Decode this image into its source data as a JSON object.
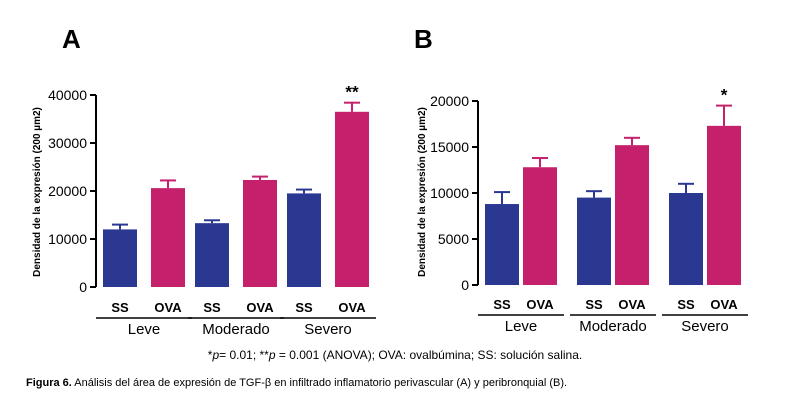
{
  "chart_data": [
    {
      "type": "bar",
      "panel": "A",
      "ylabel": "Densidad de la expresión  (200 µm2)",
      "ylim": [
        0,
        40000
      ],
      "yticks": [
        "0",
        "10000",
        "20000",
        "30000",
        "40000"
      ],
      "categories": [
        "SS",
        "OVA",
        "SS",
        "OVA",
        "SS",
        "OVA"
      ],
      "groups": [
        "Leve",
        "Moderado",
        "Severo"
      ],
      "values": [
        12000,
        20600,
        13300,
        22300,
        19500,
        36500
      ],
      "errors": [
        1000,
        1600,
        600,
        700,
        800,
        1900
      ],
      "colors": [
        "#2b3891",
        "#c4206c",
        "#2b3891",
        "#c4206c",
        "#2b3891",
        "#c4206c"
      ],
      "annotations": [
        "",
        "",
        "",
        "",
        "",
        "**"
      ]
    },
    {
      "type": "bar",
      "panel": "B",
      "ylabel": "Densidad de la expresión  (200 µm2)",
      "ylim": [
        0,
        20000
      ],
      "yticks": [
        "0",
        "5000",
        "10000",
        "15000",
        "20000"
      ],
      "categories": [
        "SS",
        "OVA",
        "SS",
        "OVA",
        "SS",
        "OVA"
      ],
      "groups": [
        "Leve",
        "Moderado",
        "Severo"
      ],
      "values": [
        8800,
        12800,
        9500,
        15200,
        10000,
        17300
      ],
      "errors": [
        1300,
        1000,
        700,
        800,
        1000,
        2200
      ],
      "colors": [
        "#2b3891",
        "#c4206c",
        "#2b3891",
        "#c4206c",
        "#2b3891",
        "#c4206c"
      ],
      "annotations": [
        "",
        "",
        "",
        "",
        "",
        "*"
      ]
    }
  ],
  "footnote": {
    "p1_symbol": "*",
    "p1_var": "p",
    "p1_rest": "= 0.01; **",
    "p2_var": "p",
    "p2_rest": " = 0.001 (ANOVA); OVA: ovalbúmina; SS: solución salina."
  },
  "caption": {
    "label": "Figura 6.",
    "text": " Análisis del área de expresión de TGF-β en infiltrado inflamatorio perivascular (A) y peribronquial (B)."
  }
}
